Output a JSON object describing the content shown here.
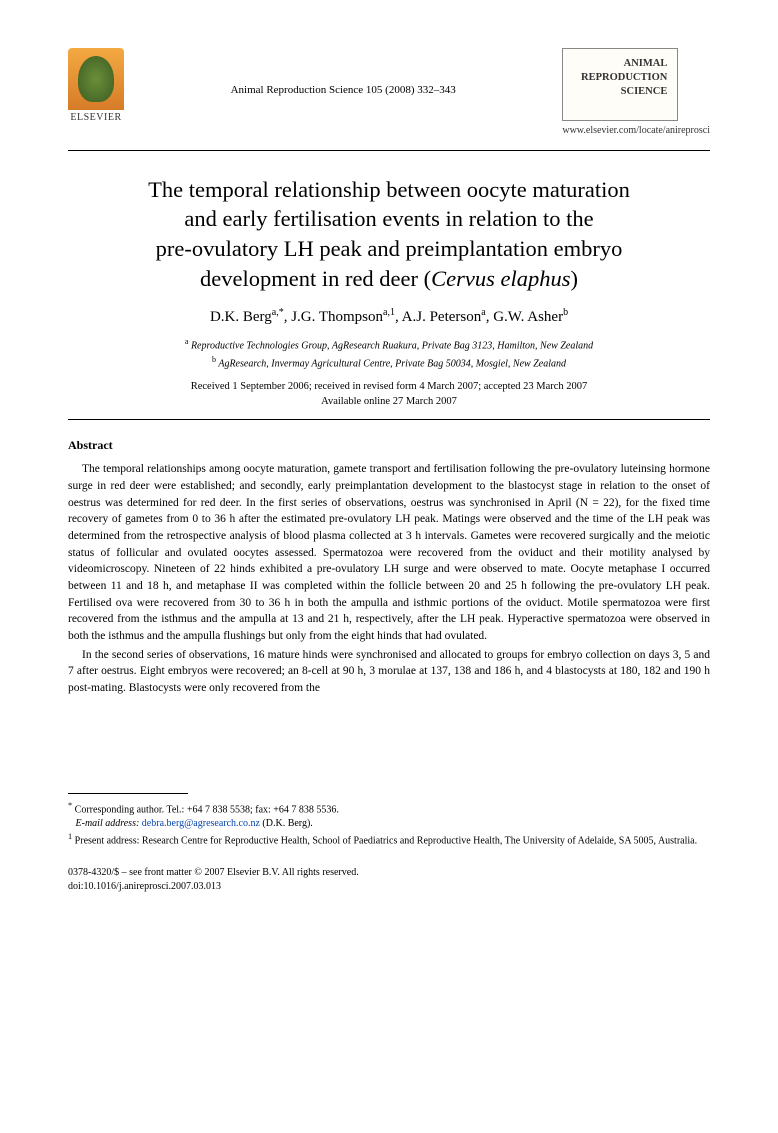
{
  "publisher": {
    "name": "ELSEVIER",
    "journal_ref": "Animal Reproduction Science 105 (2008) 332–343",
    "journal_box_title": "ANIMAL REPRODUCTION SCIENCE",
    "journal_url": "www.elsevier.com/locate/anireprosci"
  },
  "title": {
    "line1": "The temporal relationship between oocyte maturation",
    "line2": "and early fertilisation events in relation to the",
    "line3": "pre-ovulatory LH peak and preimplantation embryo",
    "line4_pre": "development in red deer (",
    "line4_italic": "Cervus elaphus",
    "line4_post": ")"
  },
  "authors": {
    "a1_name": "D.K. Berg",
    "a1_sup": "a,*",
    "a2_name": "J.G. Thompson",
    "a2_sup": "a,1",
    "a3_name": "A.J. Peterson",
    "a3_sup": "a",
    "a4_name": "G.W. Asher",
    "a4_sup": "b"
  },
  "affiliations": {
    "a_sup": "a",
    "a_text": "Reproductive Technologies Group, AgResearch Ruakura, Private Bag 3123, Hamilton, New Zealand",
    "b_sup": "b",
    "b_text": "AgResearch, Invermay Agricultural Centre, Private Bag 50034, Mosgiel, New Zealand"
  },
  "dates": {
    "received": "Received 1 September 2006; received in revised form 4 March 2007; accepted 23 March 2007",
    "online": "Available online 27 March 2007"
  },
  "abstract": {
    "heading": "Abstract",
    "p1": "The temporal relationships among oocyte maturation, gamete transport and fertilisation following the pre-ovulatory luteinsing hormone surge in red deer were established; and secondly, early preimplantation development to the blastocyst stage in relation to the onset of oestrus was determined for red deer. In the first series of observations, oestrus was synchronised in April (N = 22), for the fixed time recovery of gametes from 0 to 36 h after the estimated pre-ovulatory LH peak. Matings were observed and the time of the LH peak was determined from the retrospective analysis of blood plasma collected at 3 h intervals. Gametes were recovered surgically and the meiotic status of follicular and ovulated oocytes assessed. Spermatozoa were recovered from the oviduct and their motility analysed by videomicroscopy. Nineteen of 22 hinds exhibited a pre-ovulatory LH surge and were observed to mate. Oocyte metaphase I occurred between 11 and 18 h, and metaphase II was completed within the follicle between 20 and 25 h following the pre-ovulatory LH peak. Fertilised ova were recovered from 30 to 36 h in both the ampulla and isthmic portions of the oviduct. Motile spermatozoa were first recovered from the isthmus and the ampulla at 13 and 21 h, respectively, after the LH peak. Hyperactive spermatozoa were observed in both the isthmus and the ampulla flushings but only from the eight hinds that had ovulated.",
    "p2": "In the second series of observations, 16 mature hinds were synchronised and allocated to groups for embryo collection on days 3, 5 and 7 after oestrus. Eight embryos were recovered; an 8-cell at 90 h, 3 morulae at 137, 138 and 186 h, and 4 blastocysts at 180, 182 and 190 h post-mating. Blastocysts were only recovered from the"
  },
  "footnotes": {
    "corr_label": "*",
    "corr_text": "Corresponding author. Tel.: +64 7 838 5538; fax: +64 7 838 5536.",
    "email_label": "E-mail address:",
    "email": "debra.berg@agresearch.co.nz",
    "email_suffix": "(D.K. Berg).",
    "present_label": "1",
    "present_text": "Present address: Research Centre for Reproductive Health, School of Paediatrics and Reproductive Health, The University of Adelaide, SA 5005, Australia."
  },
  "bottom": {
    "issn_line": "0378-4320/$ – see front matter © 2007 Elsevier B.V. All rights reserved.",
    "doi_line": "doi:10.1016/j.anireprosci.2007.03.013"
  },
  "colors": {
    "text": "#000000",
    "link": "#0645ad",
    "background": "#ffffff"
  }
}
